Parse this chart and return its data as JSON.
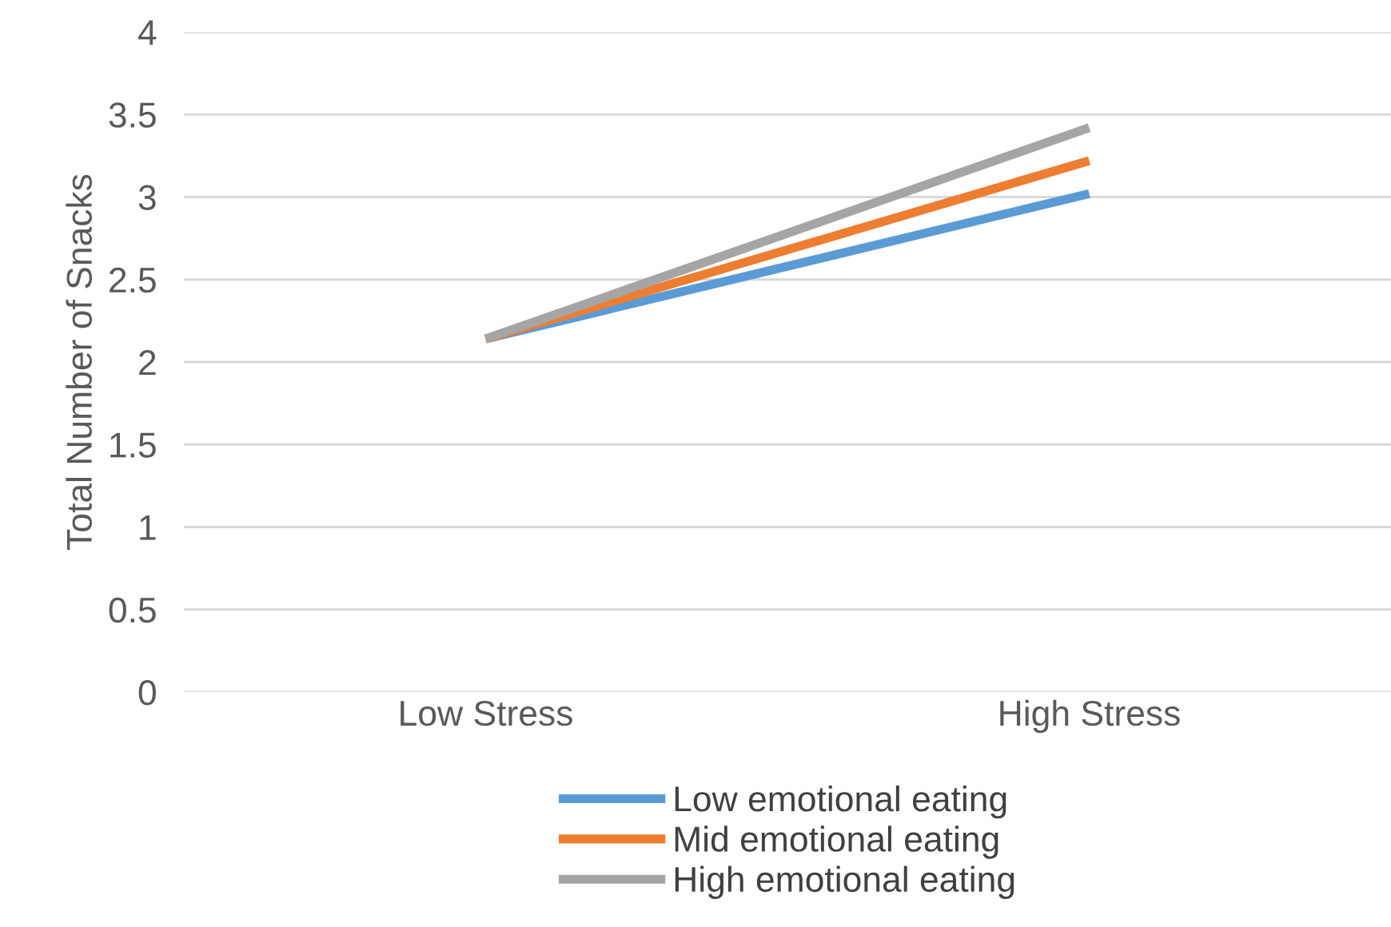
{
  "chart_data": {
    "type": "line",
    "ylabel": "Total Number of Snacks",
    "categories": [
      "Low Stress",
      "High Stress"
    ],
    "series": [
      {
        "name": "Low emotional eating",
        "color": "#5b9bd5",
        "values": [
          2.14,
          3.02
        ]
      },
      {
        "name": "Mid emotional eating",
        "color": "#ed7d31",
        "values": [
          2.14,
          3.22
        ]
      },
      {
        "name": "High emotional eating",
        "color": "#a5a5a5",
        "values": [
          2.14,
          3.42
        ]
      }
    ],
    "ylim": [
      0,
      4
    ],
    "yticks": [
      0,
      0.5,
      1,
      1.5,
      2,
      2.5,
      3,
      3.5,
      4
    ],
    "grid": "y",
    "legend": "bottom",
    "marker": "none",
    "line_style": "solid"
  }
}
